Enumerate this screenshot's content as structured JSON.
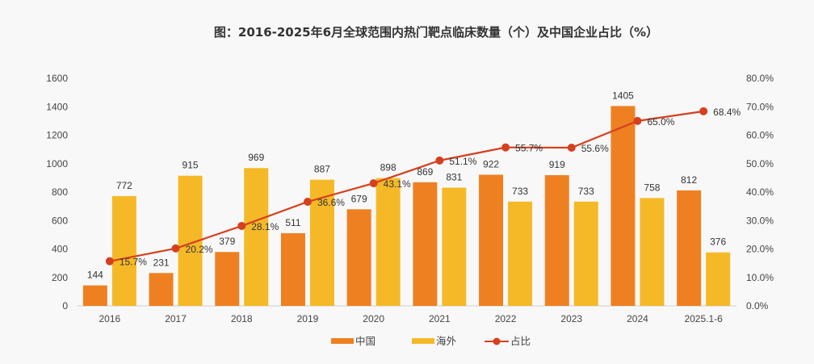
{
  "chart_data": {
    "type": "bar",
    "title": "图：2016-2025年6月全球范围内热门靶点临床数量（个）及中国企业占比（%）",
    "categories": [
      "2016",
      "2017",
      "2018",
      "2019",
      "2020",
      "2021",
      "2022",
      "2023",
      "2024",
      "2025.1-6"
    ],
    "series": [
      {
        "name": "中国",
        "type": "bar",
        "axis": "left",
        "color": "#ee8022",
        "values": [
          144,
          231,
          379,
          511,
          679,
          869,
          922,
          919,
          1405,
          812
        ]
      },
      {
        "name": "海外",
        "type": "bar",
        "axis": "left",
        "color": "#f5b928",
        "values": [
          772,
          915,
          969,
          887,
          898,
          831,
          733,
          733,
          758,
          376
        ]
      },
      {
        "name": "占比",
        "type": "line",
        "axis": "right",
        "color": "#d6401e",
        "values": [
          15.7,
          20.2,
          28.1,
          36.6,
          43.1,
          51.1,
          55.7,
          55.6,
          65.0,
          68.4
        ],
        "labels": [
          "15.7%",
          "20.2%",
          "28.1%",
          "36.6%",
          "43.1%",
          "51.1%",
          "55.7%",
          "55.6%",
          "65.0%",
          "68.4%"
        ]
      }
    ],
    "left_axis": {
      "ylim": [
        0,
        1600
      ],
      "ticks": [
        "0",
        "200",
        "400",
        "600",
        "800",
        "1000",
        "1200",
        "1400",
        "1600"
      ]
    },
    "right_axis": {
      "ylim": [
        0,
        80
      ],
      "ticks": [
        "0.0%",
        "10.0%",
        "20.0%",
        "30.0%",
        "40.0%",
        "50.0%",
        "60.0%",
        "70.0%",
        "80.0%"
      ]
    },
    "xlabel": "",
    "ylabel": "",
    "grid": false,
    "legend_position": "bottom"
  }
}
